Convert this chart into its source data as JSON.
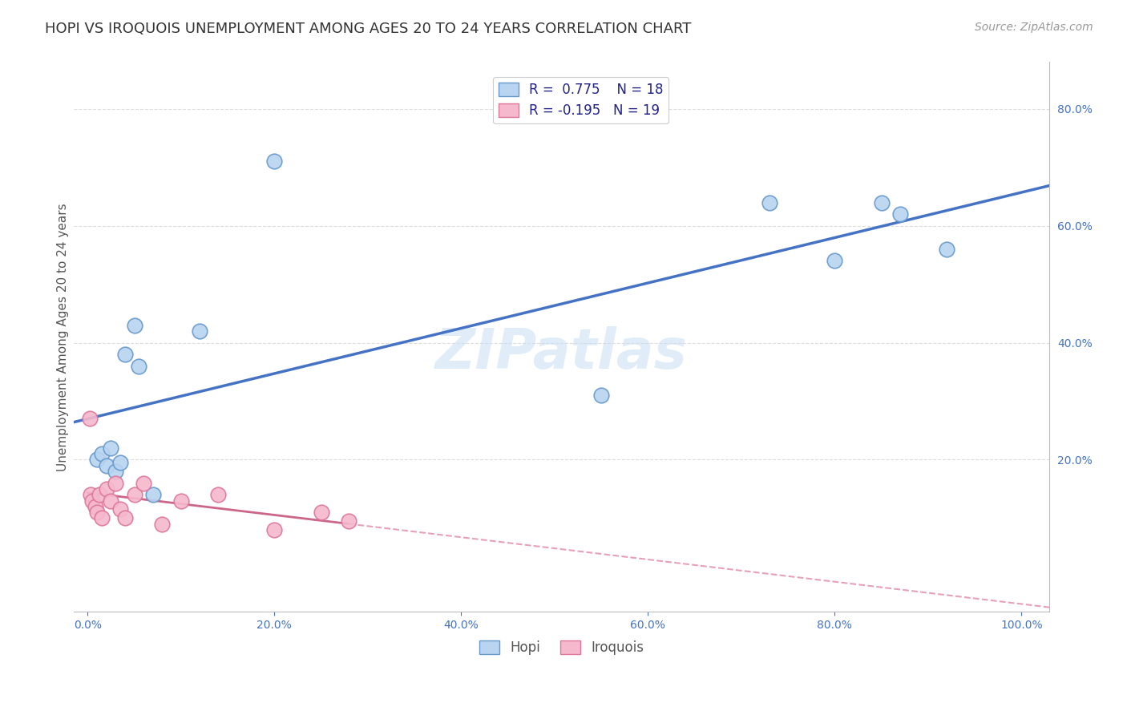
{
  "title": "HOPI VS IROQUOIS UNEMPLOYMENT AMONG AGES 20 TO 24 YEARS CORRELATION CHART",
  "source": "Source: ZipAtlas.com",
  "ylabel": "Unemployment Among Ages 20 to 24 years",
  "hopi_x": [
    1.0,
    1.5,
    2.0,
    2.5,
    3.0,
    3.5,
    4.0,
    5.0,
    5.5,
    7.0,
    12.0,
    20.0,
    55.0,
    73.0,
    80.0,
    85.0,
    87.0,
    92.0
  ],
  "hopi_y": [
    20.0,
    21.0,
    19.0,
    22.0,
    18.0,
    19.5,
    38.0,
    43.0,
    36.0,
    14.0,
    42.0,
    71.0,
    31.0,
    64.0,
    54.0,
    64.0,
    62.0,
    56.0
  ],
  "iroquois_x": [
    0.3,
    0.5,
    0.8,
    1.0,
    1.3,
    1.5,
    2.0,
    2.5,
    3.0,
    3.5,
    4.0,
    5.0,
    6.0,
    8.0,
    10.0,
    14.0,
    20.0,
    25.0,
    28.0
  ],
  "iroquois_y": [
    14.0,
    13.0,
    12.0,
    11.0,
    14.0,
    10.0,
    15.0,
    13.0,
    16.0,
    11.5,
    10.0,
    14.0,
    16.0,
    9.0,
    13.0,
    14.0,
    8.0,
    11.0,
    9.5
  ],
  "iroquois_outlier_x": [
    0.2
  ],
  "iroquois_outlier_y": [
    27.0
  ],
  "hopi_R": 0.775,
  "hopi_N": 18,
  "iroquois_R": -0.195,
  "iroquois_N": 19,
  "hopi_face_color": "#b8d4f0",
  "hopi_edge_color": "#6699cc",
  "iroquois_face_color": "#f5b8cc",
  "iroquois_edge_color": "#dd7799",
  "hopi_line_color": "#4472c4",
  "iroquois_solid_color": "#cc6688",
  "iroquois_dash_color": "#e8a0b8",
  "watermark_color": "#c8dff5",
  "tick_color": "#4472c4",
  "title_color": "#333333",
  "source_color": "#999999",
  "ylabel_color": "#555555",
  "grid_color": "#dddddd",
  "spine_color": "#bbbbbb",
  "legend_edge_color": "#cccccc",
  "legend_text_color": "#222288",
  "bottom_legend_text_color": "#555555",
  "xlim": [
    -1.5,
    103
  ],
  "ylim": [
    -6,
    88
  ],
  "xticks": [
    0,
    20,
    40,
    60,
    80,
    100
  ],
  "yticks": [
    20,
    40,
    60,
    80
  ],
  "xtick_labels": [
    "0.0%",
    "20.0%",
    "40.0%",
    "60.0%",
    "80.0%",
    "100.0%"
  ],
  "ytick_labels": [
    "20.0%",
    "40.0%",
    "60.0%",
    "80.0%"
  ],
  "title_fontsize": 13,
  "source_fontsize": 10,
  "axis_label_fontsize": 11,
  "tick_fontsize": 10,
  "legend_fontsize": 12,
  "watermark_fontsize": 50,
  "watermark_text": "ZIPatlas",
  "legend_label_hopi": "Hopi",
  "legend_label_iroquois": "Iroquois"
}
